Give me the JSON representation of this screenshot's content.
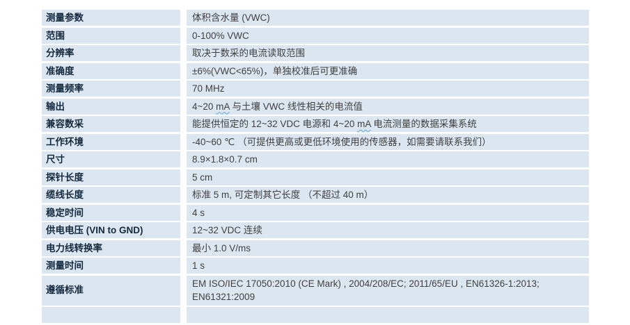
{
  "page": {
    "background_color": "#ffffff"
  },
  "table": {
    "cell_background": "#dce6f0",
    "label_color": "#14293e",
    "value_color": "#3f3f3f",
    "squiggle_color": "#5aa7dd",
    "rows": [
      {
        "label": "测量参数",
        "value": "体积含水量 (VWC)"
      },
      {
        "label": "范围",
        "value": "0-100% VWC"
      },
      {
        "label": "分辨率",
        "value": "取决于数采的电流读取范围"
      },
      {
        "label": "准确度",
        "value": "±6%(VWC<65%)，单独校准后可更准确"
      },
      {
        "label": "测量频率",
        "value": "70 MHz"
      },
      {
        "label": "输出",
        "value": "4~20 mA 与土壤 VWC 线性相关的电流值",
        "squiggle": "mA"
      },
      {
        "label": "兼容数采",
        "value": "能提供恒定的 12~32 VDC 电源和 4~20 mA 电流测量的数据采集系统",
        "squiggle": "mA"
      },
      {
        "label": "工作环境",
        "value": "-40~60 ℃ （可提供更高或更低环境使用的传感器，如需要请联系我们）"
      },
      {
        "label": "尺寸",
        "value": "8.9×1.8×0.7 cm"
      },
      {
        "label": "探针长度",
        "value": "5 cm"
      },
      {
        "label": "缆线长度",
        "value": "标准 5 m, 可定制其它长度 （不超过 40 m）"
      },
      {
        "label": "稳定时间",
        "value": "4 s"
      },
      {
        "label": "供电电压 (VIN to GND)",
        "value": "12~32 VDC  连续"
      },
      {
        "label": "电力线转换率",
        "value": "最小  1.0 V/ms"
      },
      {
        "label": "测量时间",
        "value": "1 s"
      },
      {
        "label": "遵循标准",
        "value": "EM ISO/IEC 17050:2010 (CE Mark) , 2004/208/EC; 2011/65/EU , EN61326-1:2013;\nEN61321:2009"
      },
      {
        "label": "",
        "value": ""
      }
    ]
  }
}
